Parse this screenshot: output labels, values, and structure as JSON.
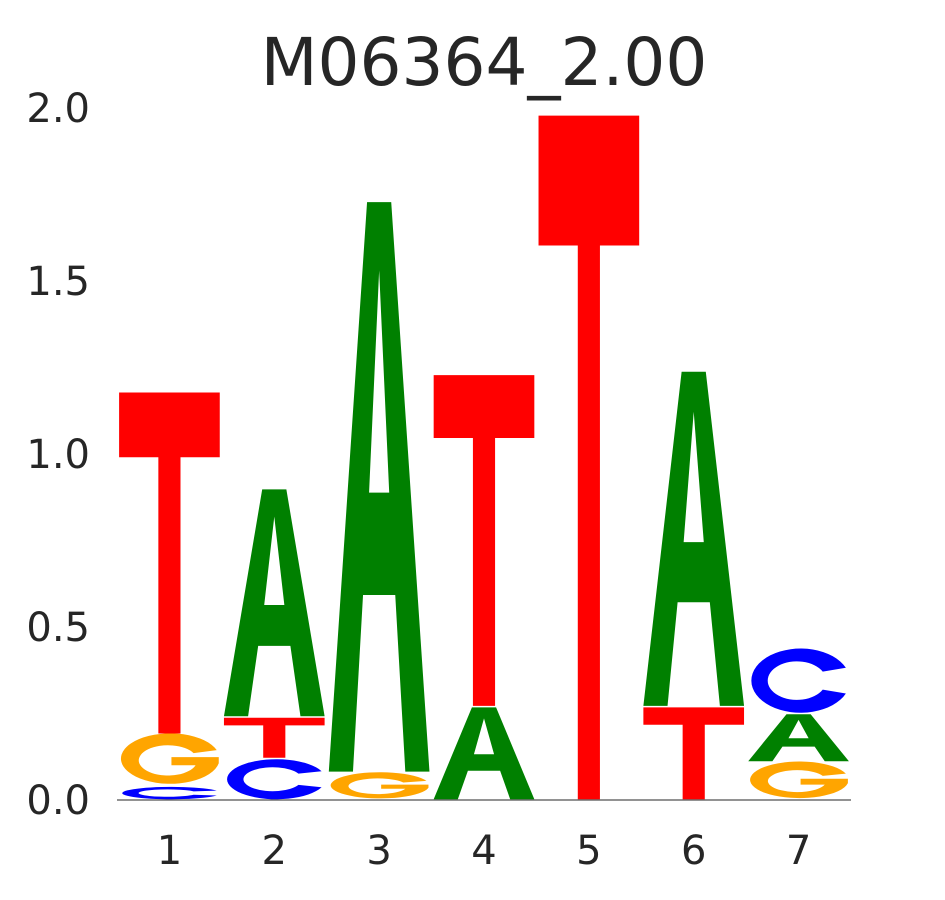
{
  "chart_data": {
    "type": "sequence-logo",
    "title": "M06364_2.00",
    "xlabel": "",
    "ylabel": "",
    "ylim": [
      0,
      2.0
    ],
    "yticks": [
      "0.0",
      "0.5",
      "1.0",
      "1.5",
      "2.0"
    ],
    "ytick_values": [
      0,
      0.5,
      1.0,
      1.5,
      2.0
    ],
    "positions": [
      "1",
      "2",
      "3",
      "4",
      "5",
      "6",
      "7"
    ],
    "colors": {
      "A": "#008000",
      "C": "#0000ff",
      "G": "#ffa500",
      "T": "#ff0000"
    },
    "stacks": [
      [
        {
          "letter": "C",
          "bits": 0.04
        },
        {
          "letter": "G",
          "bits": 0.15
        },
        {
          "letter": "T",
          "bits": 0.99
        }
      ],
      [
        {
          "letter": "C",
          "bits": 0.12
        },
        {
          "letter": "T",
          "bits": 0.12
        },
        {
          "letter": "A",
          "bits": 0.66
        }
      ],
      [
        {
          "letter": "G",
          "bits": 0.08
        },
        {
          "letter": "A",
          "bits": 1.65
        }
      ],
      [
        {
          "letter": "A",
          "bits": 0.27
        },
        {
          "letter": "T",
          "bits": 0.96
        }
      ],
      [
        {
          "letter": "T",
          "bits": 1.98
        }
      ],
      [
        {
          "letter": "T",
          "bits": 0.27
        },
        {
          "letter": "A",
          "bits": 0.97
        }
      ],
      [
        {
          "letter": "G",
          "bits": 0.11
        },
        {
          "letter": "A",
          "bits": 0.14
        },
        {
          "letter": "C",
          "bits": 0.19
        }
      ]
    ]
  }
}
